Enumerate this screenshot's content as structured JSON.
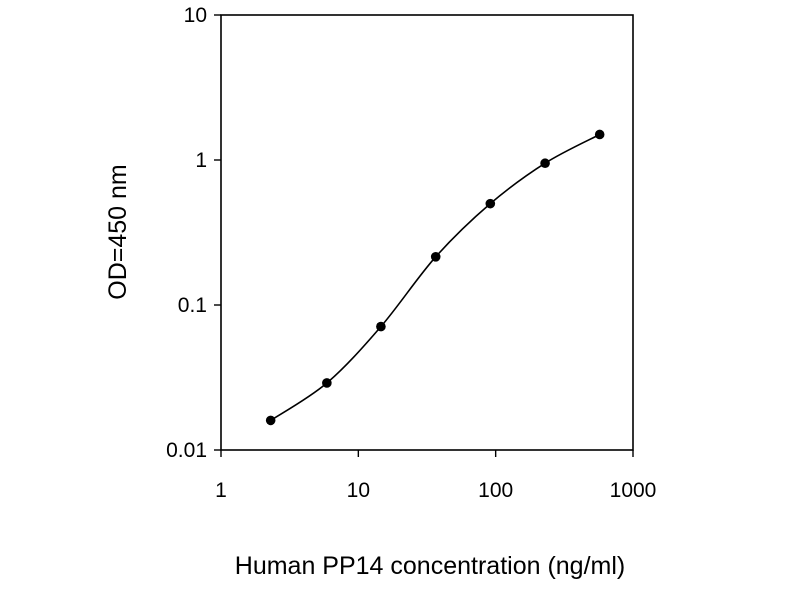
{
  "chart_data": {
    "type": "line",
    "title": "",
    "xlabel": "Human PP14 concentration (ng/ml)",
    "ylabel": "OD=450 nm",
    "xscale": "log",
    "yscale": "log",
    "xlim": [
      1,
      1000
    ],
    "ylim": [
      0.01,
      10
    ],
    "xticks": [
      1,
      10,
      100,
      1000
    ],
    "xtick_labels": [
      "1",
      "10",
      "100",
      "1000"
    ],
    "yticks": [
      0.01,
      0.1,
      1,
      10
    ],
    "ytick_labels": [
      "0.01",
      "0.1",
      "1",
      "10"
    ],
    "grid": false,
    "legend": "none",
    "smooth": true,
    "marker": "circle",
    "line_color": "#000000",
    "series": [
      {
        "x": [
          2.3,
          5.9,
          14.6,
          36.6,
          91.4,
          229,
          572
        ],
        "y": [
          0.016,
          0.029,
          0.071,
          0.215,
          0.5,
          0.95,
          1.5
        ]
      }
    ]
  }
}
